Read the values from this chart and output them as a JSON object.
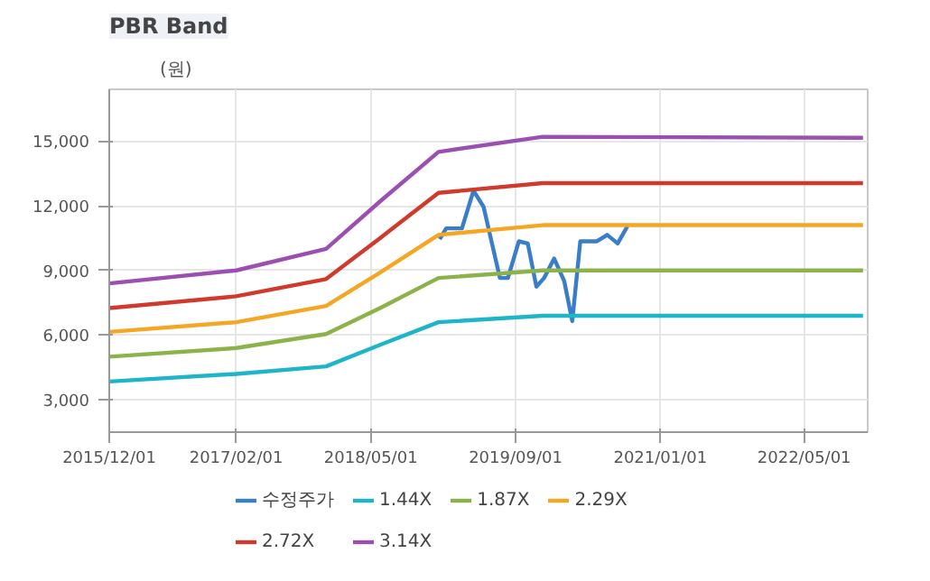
{
  "chart_data": {
    "type": "line",
    "title": "PBR Band",
    "ylabel": "(원)",
    "xlim": [
      "2015-12-01",
      "2022-12-01"
    ],
    "ylim": [
      1500,
      17400
    ],
    "xticks": [
      {
        "value": "2015-12-01",
        "label": "2015/12/01"
      },
      {
        "value": "2017-02-01",
        "label": "2017/02/01"
      },
      {
        "value": "2018-05-01",
        "label": "2018/05/01"
      },
      {
        "value": "2019-09-01",
        "label": "2019/09/01"
      },
      {
        "value": "2021-01-01",
        "label": "2021/01/01"
      },
      {
        "value": "2022-05-01",
        "label": "2022/05/01"
      }
    ],
    "yticks": [
      {
        "value": 3000,
        "label": "3,000"
      },
      {
        "value": 6000,
        "label": "6,000"
      },
      {
        "value": 9000,
        "label": "9,000"
      },
      {
        "value": 12000,
        "label": "12,000"
      },
      {
        "value": 15000,
        "label": "15,000"
      }
    ],
    "grid": true,
    "legend": "bottom",
    "marker": "none",
    "line_style": "solid",
    "series": [
      {
        "name": "수정주가",
        "color": "#3a7dc9",
        "x": [
          "2018-12-19",
          "2019-01-10",
          "2019-03-04",
          "2019-04-12",
          "2019-05-16",
          "2019-07-10",
          "2019-08-06",
          "2019-09-12",
          "2019-10-12",
          "2019-11-10",
          "2019-12-06",
          "2020-01-09",
          "2020-02-12",
          "2020-03-10",
          "2020-04-06",
          "2020-06-01",
          "2020-07-06",
          "2020-08-10",
          "2020-09-12"
        ],
        "values": [
          10450,
          10950,
          10950,
          12700,
          11950,
          8650,
          8650,
          10350,
          10250,
          8250,
          8650,
          9550,
          8500,
          6650,
          10350,
          10350,
          10650,
          10250,
          11050
        ]
      },
      {
        "name": "1.44X",
        "color": "#1fb5c9",
        "x": [
          "2015-12-01",
          "2017-02-01",
          "2017-12-01",
          "2018-06-01",
          "2018-12-15",
          "2019-12-01",
          "2022-11-15"
        ],
        "values": [
          3850,
          4200,
          4550,
          5550,
          6600,
          6900,
          6900
        ]
      },
      {
        "name": "1.87X",
        "color": "#8cb34a",
        "x": [
          "2015-12-01",
          "2017-02-01",
          "2017-12-01",
          "2018-06-01",
          "2018-12-15",
          "2019-12-01",
          "2022-11-15"
        ],
        "values": [
          5000,
          5400,
          6050,
          7250,
          8650,
          9000,
          9000
        ]
      },
      {
        "name": "2.29X",
        "color": "#f5a623",
        "x": [
          "2015-12-01",
          "2017-02-01",
          "2017-12-01",
          "2018-06-01",
          "2018-12-15",
          "2019-12-01",
          "2022-11-15"
        ],
        "values": [
          6150,
          6600,
          7350,
          8900,
          10650,
          11100,
          11100
        ]
      },
      {
        "name": "2.72X",
        "color": "#d0392b",
        "x": [
          "2015-12-01",
          "2017-02-01",
          "2017-12-01",
          "2018-06-01",
          "2018-12-15",
          "2019-12-01",
          "2022-11-15"
        ],
        "values": [
          7250,
          7800,
          8600,
          10500,
          12600,
          13050,
          13050
        ]
      },
      {
        "name": "3.14X",
        "color": "#9b4fb0",
        "x": [
          "2015-12-01",
          "2017-02-01",
          "2017-12-01",
          "2018-06-01",
          "2018-12-15",
          "2019-12-01",
          "2022-11-15"
        ],
        "values": [
          8400,
          9000,
          10000,
          12200,
          14500,
          15200,
          15150
        ]
      }
    ]
  }
}
